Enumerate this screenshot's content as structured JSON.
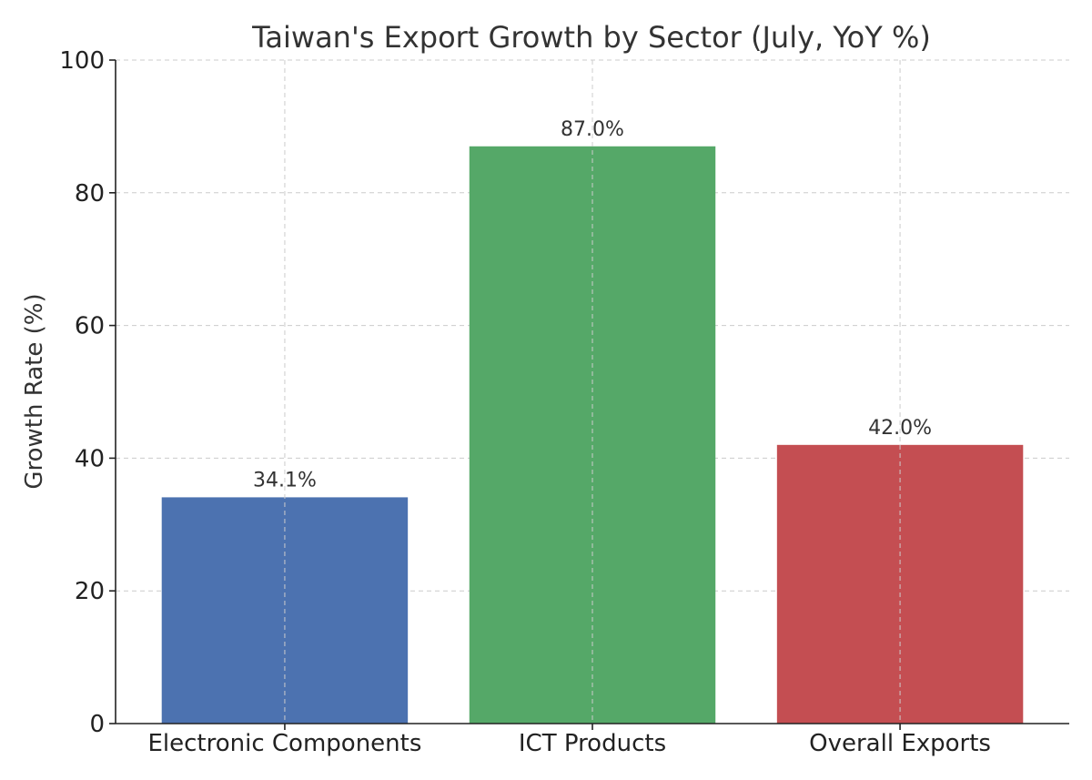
{
  "chart_data": {
    "type": "bar",
    "title": "Taiwan's Export Growth by Sector (July, YoY %)",
    "xlabel": "",
    "ylabel": "Growth Rate (%)",
    "categories": [
      "Electronic Components",
      "ICT Products",
      "Overall Exports"
    ],
    "values": [
      34.1,
      87.0,
      42.0
    ],
    "data_labels": [
      "34.1%",
      "87.0%",
      "42.0%"
    ],
    "colors": [
      "#4c72b0",
      "#55a868",
      "#c44e52"
    ],
    "ylim": [
      0,
      100
    ],
    "yticks": [
      0,
      20,
      40,
      60,
      80,
      100
    ],
    "grid": true,
    "legend": "none"
  }
}
